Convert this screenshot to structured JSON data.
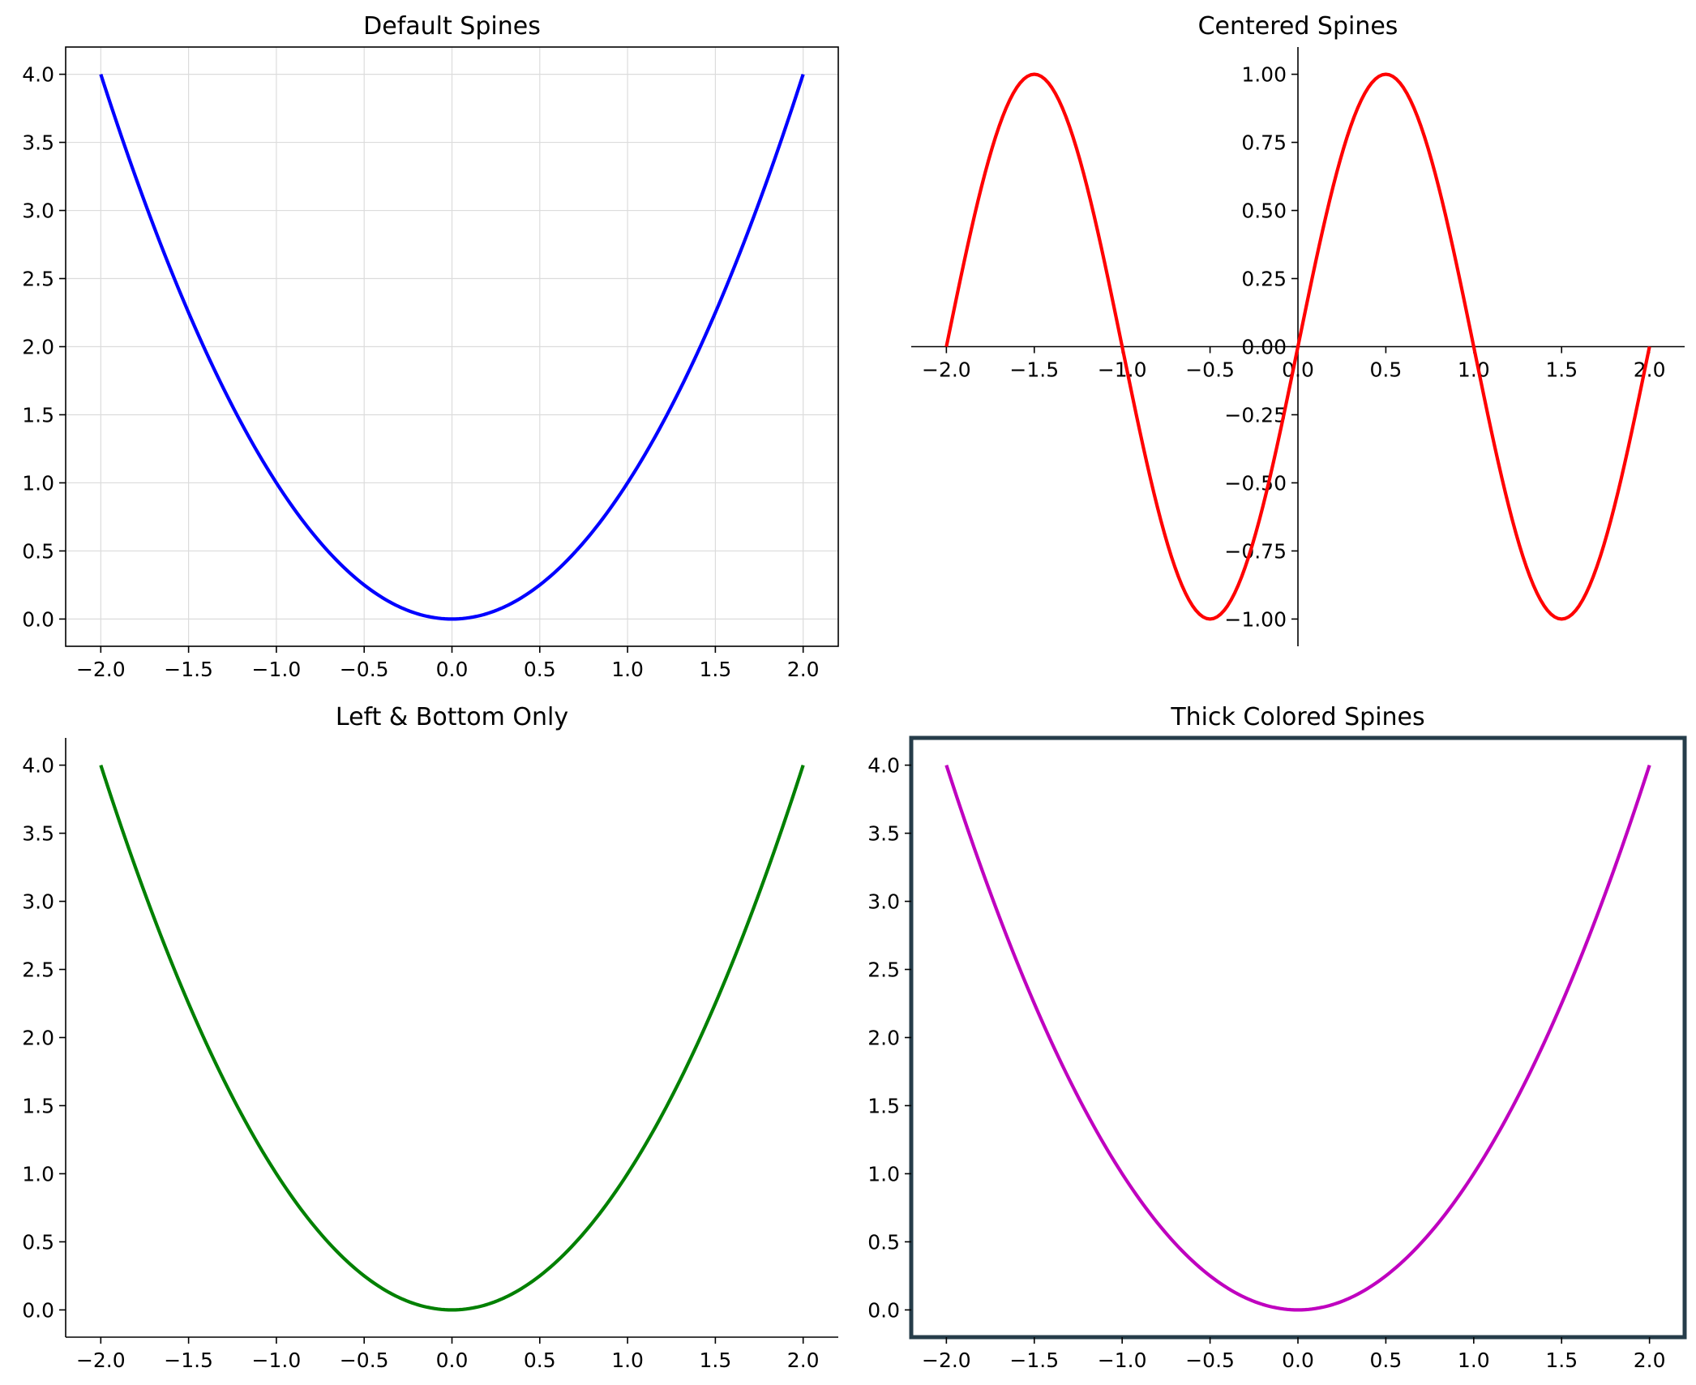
{
  "chart_data": [
    {
      "type": "line",
      "title": "Default Spines",
      "xlabel": "",
      "ylabel": "",
      "xlim": [
        -2.2,
        2.2
      ],
      "ylim": [
        -0.2,
        4.2
      ],
      "xticks": [
        -2.0,
        -1.5,
        -1.0,
        -0.5,
        0.0,
        0.5,
        1.0,
        1.5,
        2.0
      ],
      "xtick_labels": [
        "−2.0",
        "−1.5",
        "−1.0",
        "−0.5",
        "0.0",
        "0.5",
        "1.0",
        "1.5",
        "2.0"
      ],
      "yticks": [
        0.0,
        0.5,
        1.0,
        1.5,
        2.0,
        2.5,
        3.0,
        3.5,
        4.0
      ],
      "ytick_labels": [
        "0.0",
        "0.5",
        "1.0",
        "1.5",
        "2.0",
        "2.5",
        "3.0",
        "3.5",
        "4.0"
      ],
      "grid": true,
      "spines": "all",
      "series": [
        {
          "color": "#0000ff",
          "x": [
            -2.0,
            -1.75,
            -1.5,
            -1.25,
            -1.0,
            -0.75,
            -0.5,
            -0.25,
            0.0,
            0.25,
            0.5,
            0.75,
            1.0,
            1.25,
            1.5,
            1.75,
            2.0
          ],
          "y": [
            4.0,
            3.0625,
            2.25,
            1.5625,
            1.0,
            0.5625,
            0.25,
            0.0625,
            0.0,
            0.0625,
            0.25,
            0.5625,
            1.0,
            1.5625,
            2.25,
            3.0625,
            4.0
          ]
        }
      ]
    },
    {
      "type": "line",
      "title": "Centered Spines",
      "xlabel": "",
      "ylabel": "",
      "xlim": [
        -2.2,
        2.2
      ],
      "ylim": [
        -1.1,
        1.1
      ],
      "xticks": [
        -2.0,
        -1.5,
        -1.0,
        -0.5,
        0.0,
        0.5,
        1.0,
        1.5,
        2.0
      ],
      "xtick_labels": [
        "−2.0",
        "−1.5",
        "−1.0",
        "−0.5",
        "0.0",
        "0.5",
        "1.0",
        "1.5",
        "2.0"
      ],
      "yticks": [
        -1.0,
        -0.75,
        -0.5,
        -0.25,
        0.0,
        0.25,
        0.5,
        0.75,
        1.0
      ],
      "ytick_labels": [
        "−1.00",
        "−0.75",
        "−0.50",
        "−0.25",
        "0.00",
        "0.25",
        "0.50",
        "0.75",
        "1.00"
      ],
      "grid": false,
      "spines": "centered",
      "series": [
        {
          "color": "#ff0000",
          "x": [
            -2.0,
            -1.9,
            -1.8,
            -1.7,
            -1.6,
            -1.5,
            -1.4,
            -1.3,
            -1.2,
            -1.1,
            -1.0,
            -0.9,
            -0.8,
            -0.7,
            -0.6,
            -0.5,
            -0.4,
            -0.3,
            -0.2,
            -0.1,
            0.0,
            0.1,
            0.2,
            0.3,
            0.4,
            0.5,
            0.6,
            0.7,
            0.8,
            0.9,
            1.0,
            1.1,
            1.2,
            1.3,
            1.4,
            1.5,
            1.6,
            1.7,
            1.8,
            1.9,
            2.0
          ],
          "y": [
            0.0,
            0.309,
            0.588,
            0.809,
            0.951,
            1.0,
            0.951,
            0.809,
            0.588,
            0.309,
            0.0,
            -0.309,
            -0.588,
            -0.809,
            -0.951,
            -1.0,
            -0.951,
            -0.809,
            -0.588,
            -0.309,
            0.0,
            0.309,
            0.588,
            0.809,
            0.951,
            1.0,
            0.951,
            0.809,
            0.588,
            0.309,
            0.0,
            -0.309,
            -0.588,
            -0.809,
            -0.951,
            -1.0,
            -0.951,
            -0.809,
            -0.588,
            -0.309,
            0.0
          ]
        }
      ]
    },
    {
      "type": "line",
      "title": "Left & Bottom Only",
      "xlabel": "",
      "ylabel": "",
      "xlim": [
        -2.2,
        2.2
      ],
      "ylim": [
        -0.2,
        4.2
      ],
      "xticks": [
        -2.0,
        -1.5,
        -1.0,
        -0.5,
        0.0,
        0.5,
        1.0,
        1.5,
        2.0
      ],
      "xtick_labels": [
        "−2.0",
        "−1.5",
        "−1.0",
        "−0.5",
        "0.0",
        "0.5",
        "1.0",
        "1.5",
        "2.0"
      ],
      "yticks": [
        0.0,
        0.5,
        1.0,
        1.5,
        2.0,
        2.5,
        3.0,
        3.5,
        4.0
      ],
      "ytick_labels": [
        "0.0",
        "0.5",
        "1.0",
        "1.5",
        "2.0",
        "2.5",
        "3.0",
        "3.5",
        "4.0"
      ],
      "grid": false,
      "spines": "left-bottom",
      "series": [
        {
          "color": "#008000",
          "x": [
            -2.0,
            -1.75,
            -1.5,
            -1.25,
            -1.0,
            -0.75,
            -0.5,
            -0.25,
            0.0,
            0.25,
            0.5,
            0.75,
            1.0,
            1.25,
            1.5,
            1.75,
            2.0
          ],
          "y": [
            4.0,
            3.0625,
            2.25,
            1.5625,
            1.0,
            0.5625,
            0.25,
            0.0625,
            0.0,
            0.0625,
            0.25,
            0.5625,
            1.0,
            1.5625,
            2.25,
            3.0625,
            4.0
          ]
        }
      ]
    },
    {
      "type": "line",
      "title": "Thick Colored Spines",
      "xlabel": "",
      "ylabel": "",
      "xlim": [
        -2.2,
        2.2
      ],
      "ylim": [
        -0.2,
        4.2
      ],
      "xticks": [
        -2.0,
        -1.5,
        -1.0,
        -0.5,
        0.0,
        0.5,
        1.0,
        1.5,
        2.0
      ],
      "xtick_labels": [
        "−2.0",
        "−1.5",
        "−1.0",
        "−0.5",
        "0.0",
        "0.5",
        "1.0",
        "1.5",
        "2.0"
      ],
      "yticks": [
        0.0,
        0.5,
        1.0,
        1.5,
        2.0,
        2.5,
        3.0,
        3.5,
        4.0
      ],
      "ytick_labels": [
        "0.0",
        "0.5",
        "1.0",
        "1.5",
        "2.0",
        "2.5",
        "3.0",
        "3.5",
        "4.0"
      ],
      "grid": false,
      "spines": "thick-colored",
      "spine_color": "#263d4a",
      "series": [
        {
          "color": "#bf00bf",
          "x": [
            -2.0,
            -1.75,
            -1.5,
            -1.25,
            -1.0,
            -0.75,
            -0.5,
            -0.25,
            0.0,
            0.25,
            0.5,
            0.75,
            1.0,
            1.25,
            1.5,
            1.75,
            2.0
          ],
          "y": [
            4.0,
            3.0625,
            2.25,
            1.5625,
            1.0,
            0.5625,
            0.25,
            0.0625,
            0.0,
            0.0625,
            0.25,
            0.5625,
            1.0,
            1.5625,
            2.25,
            3.0625,
            4.0
          ]
        }
      ]
    }
  ]
}
